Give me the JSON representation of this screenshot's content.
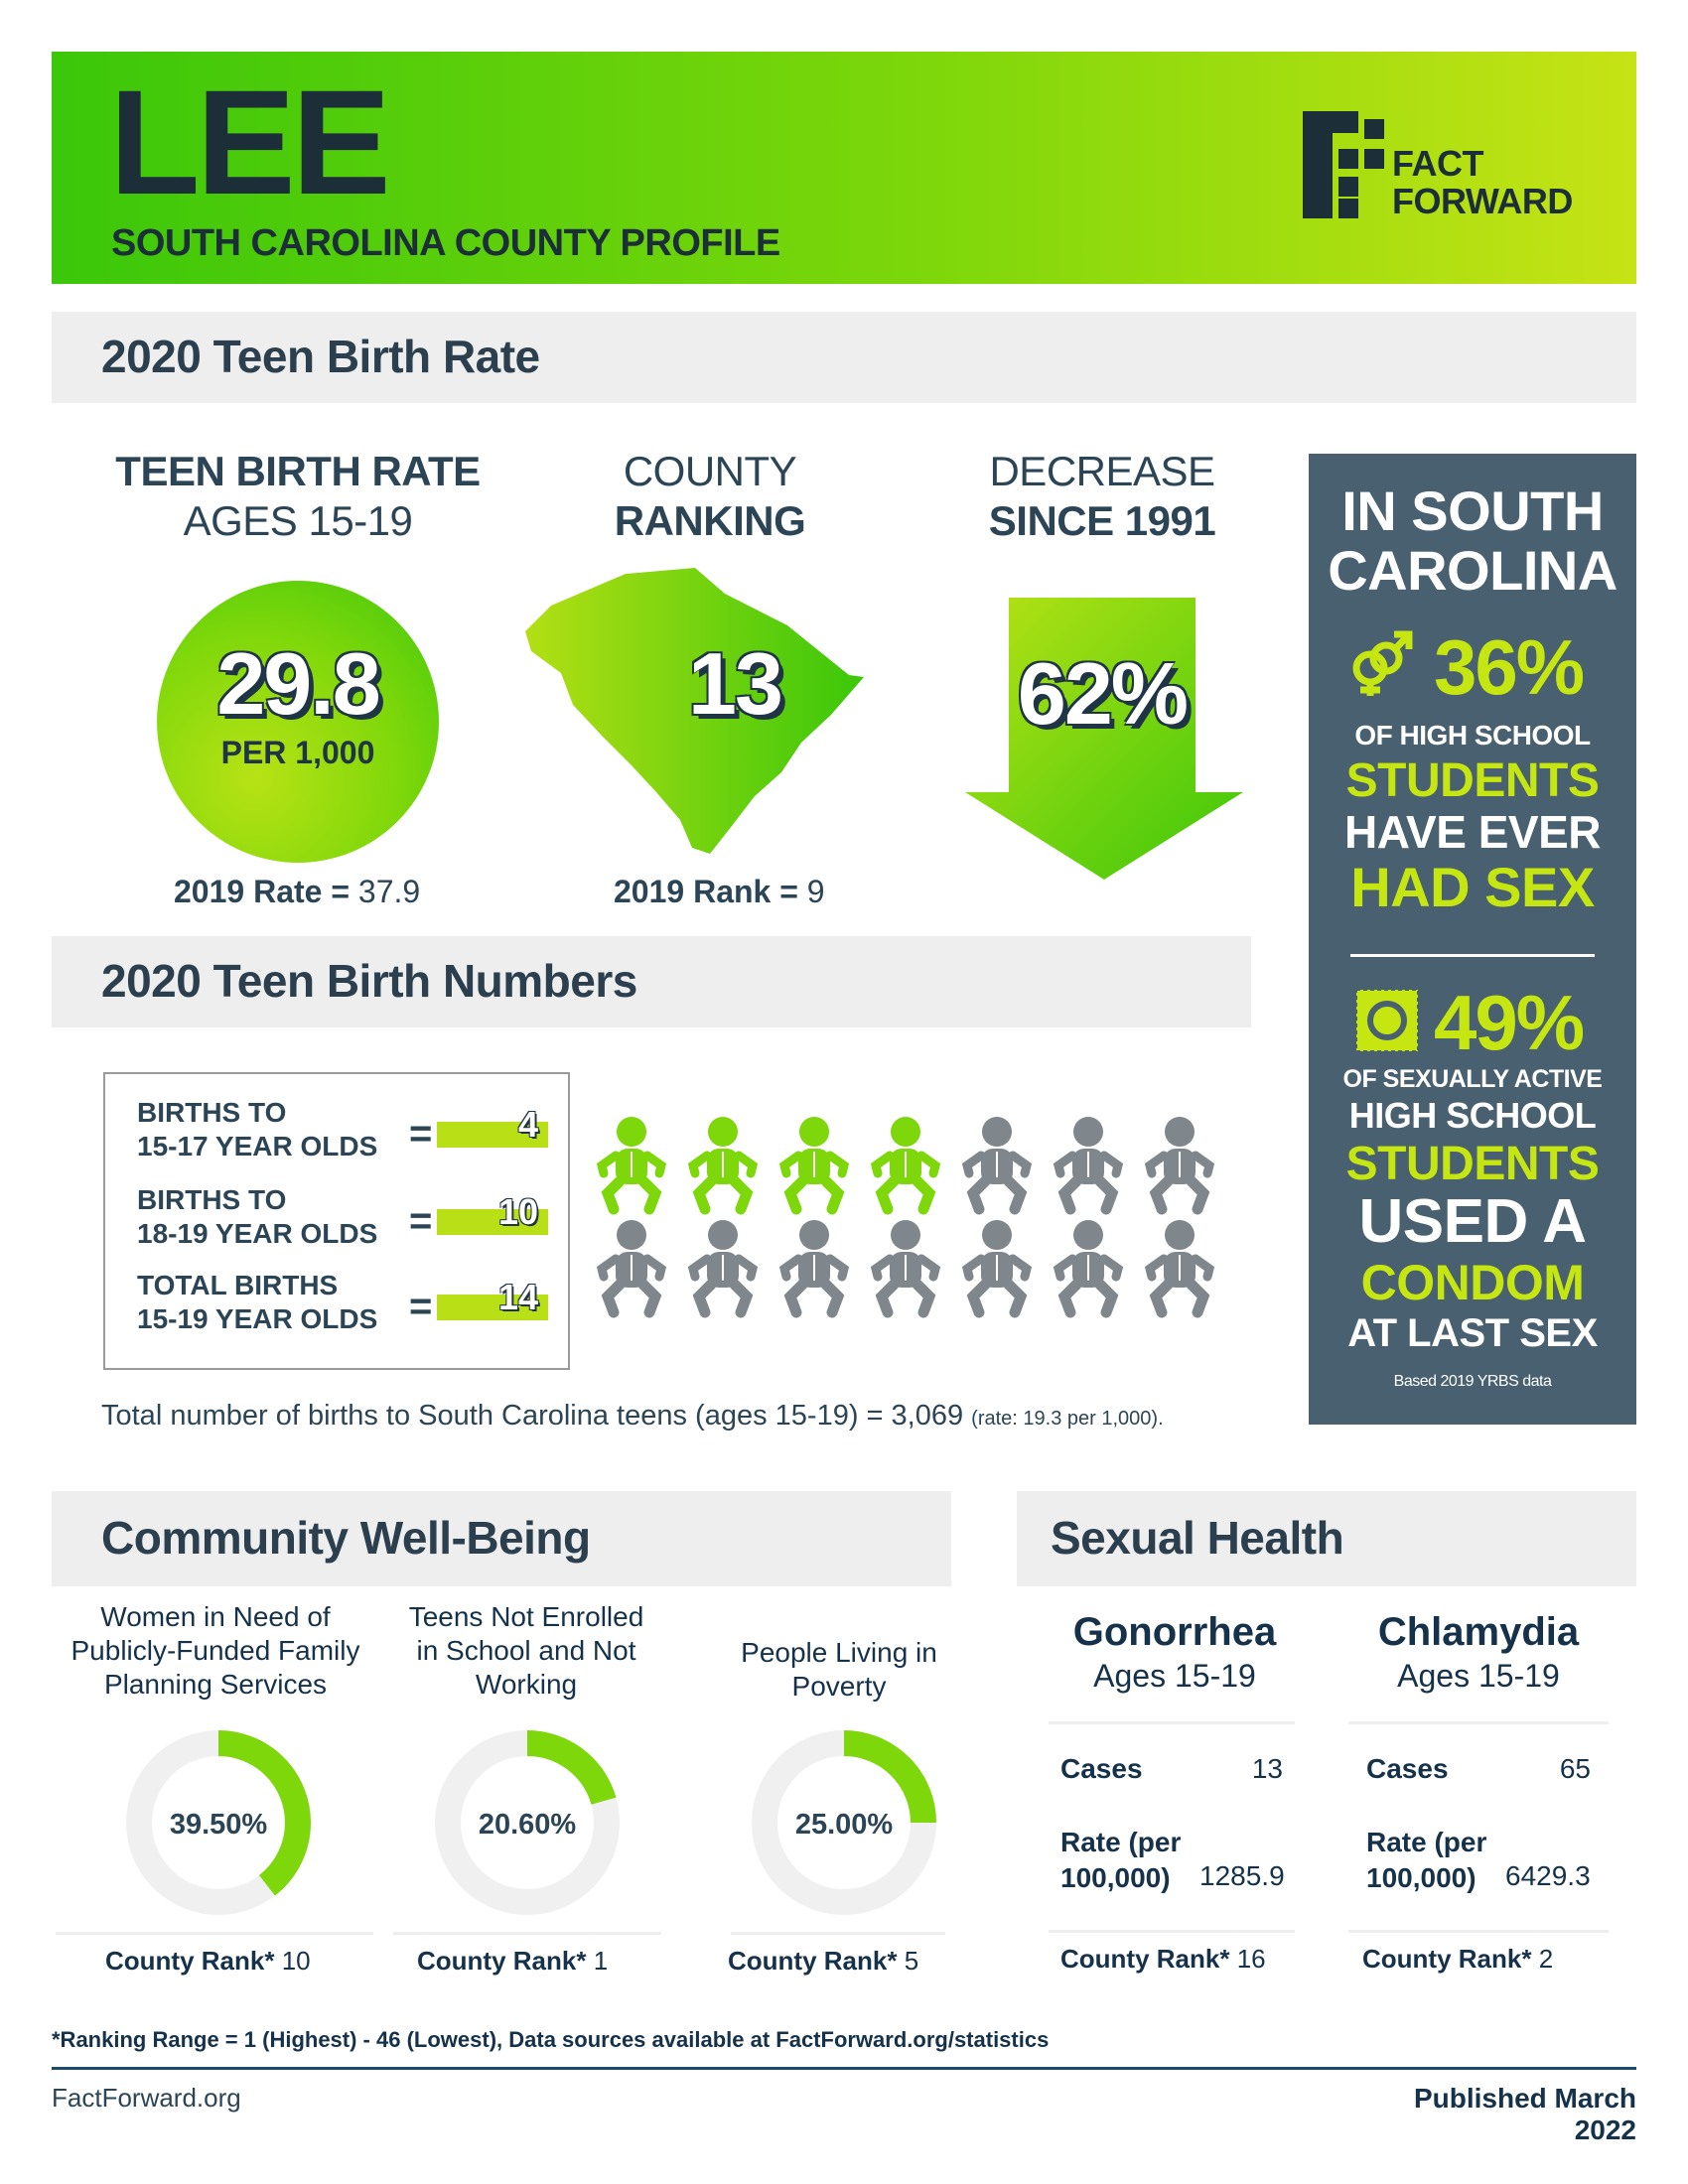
{
  "header": {
    "county": "LEE",
    "subtitle": "SOUTH CAROLINA COUNTY PROFILE",
    "logo_line1": "FACT",
    "logo_line2": "FORWARD"
  },
  "colors": {
    "accent": "#7dd70a",
    "lime": "#c6e612",
    "navy": "#16324a",
    "panel": "#48606f"
  },
  "birth_rate": {
    "section_title": "2020 Teen Birth Rate",
    "rate": {
      "head_line1": "TEEN BIRTH RATE",
      "head_line2": "AGES 15-19",
      "value": "29.8",
      "unit": "PER 1,000",
      "prior_label": "2019 Rate =",
      "prior_value": "37.9"
    },
    "ranking": {
      "head_line1": "COUNTY",
      "head_line2": "RANKING",
      "value": "13",
      "prior_label": "2019 Rank =",
      "prior_value": "9"
    },
    "decrease": {
      "head_line1": "DECREASE",
      "head_line2": "SINCE 1991",
      "value": "62%"
    }
  },
  "side_panel": {
    "title_line1": "IN SOUTH",
    "title_line2": "CAROLINA",
    "stat1_value": "36%",
    "stat1_line1": "OF HIGH SCHOOL",
    "stat1_line2": "STUDENTS",
    "stat1_line3": "HAVE EVER",
    "stat1_line4": "HAD SEX",
    "stat2_value": "49%",
    "stat2_line1": "OF SEXUALLY ACTIVE",
    "stat2_line2": "HIGH SCHOOL",
    "stat2_line3": "STUDENTS",
    "stat2_line4": "USED A",
    "stat2_line5": "CONDOM",
    "stat2_line6": "AT LAST SEX",
    "source": "Based 2019 YRBS data"
  },
  "birth_numbers": {
    "section_title": "2020 Teen Birth Numbers",
    "rows": [
      {
        "line1": "BIRTHS TO",
        "line2": "15-17 YEAR OLDS",
        "value": "4"
      },
      {
        "line1": "BIRTHS TO",
        "line2": "18-19 YEAR OLDS",
        "value": "10"
      },
      {
        "line1": "TOTAL BIRTHS",
        "line2": "15-19 YEAR OLDS",
        "value": "14"
      }
    ],
    "equals": "=",
    "babies_highlighted": 4,
    "babies_total": 14,
    "state_total_text": "Total number of births to South Carolina teens (ages 15-19) = 3,069",
    "state_rate_text": "(rate: 19.3 per 1,000)."
  },
  "wellbeing": {
    "section_title": "Community Well-Being",
    "rank_label": "County Rank*",
    "items": [
      {
        "label_line1": "Women in Need of",
        "label_line2": "Publicly-Funded Family",
        "label_line3": "Planning Services",
        "value_text": "39.50%",
        "fraction": 0.395,
        "rank": "10"
      },
      {
        "label_line1": "Teens Not Enrolled",
        "label_line2": "in School and Not",
        "label_line3": "Working",
        "value_text": "20.60%",
        "fraction": 0.206,
        "rank": "1"
      },
      {
        "label_line1": "People Living in",
        "label_line2": "Poverty",
        "label_line3": "",
        "value_text": "25.00%",
        "fraction": 0.25,
        "rank": "5"
      }
    ]
  },
  "sexual_health": {
    "section_title": "Sexual Health",
    "cases_label": "Cases",
    "rate_label_line1": "Rate (per",
    "rate_label_line2": "100,000)",
    "rank_label": "County Rank*",
    "items": [
      {
        "name": "Gonorrhea",
        "ages": "Ages 15-19",
        "cases": "13",
        "rate": "1285.9",
        "rank": "16"
      },
      {
        "name": "Chlamydia",
        "ages": "Ages 15-19",
        "cases": "65",
        "rate": "6429.3",
        "rank": "2"
      }
    ]
  },
  "footer": {
    "note": "*Ranking Range = 1 (Highest) - 46 (Lowest), Data sources available at FactForward.org/statistics",
    "site": "FactForward.org",
    "published": "Published March 2022"
  }
}
